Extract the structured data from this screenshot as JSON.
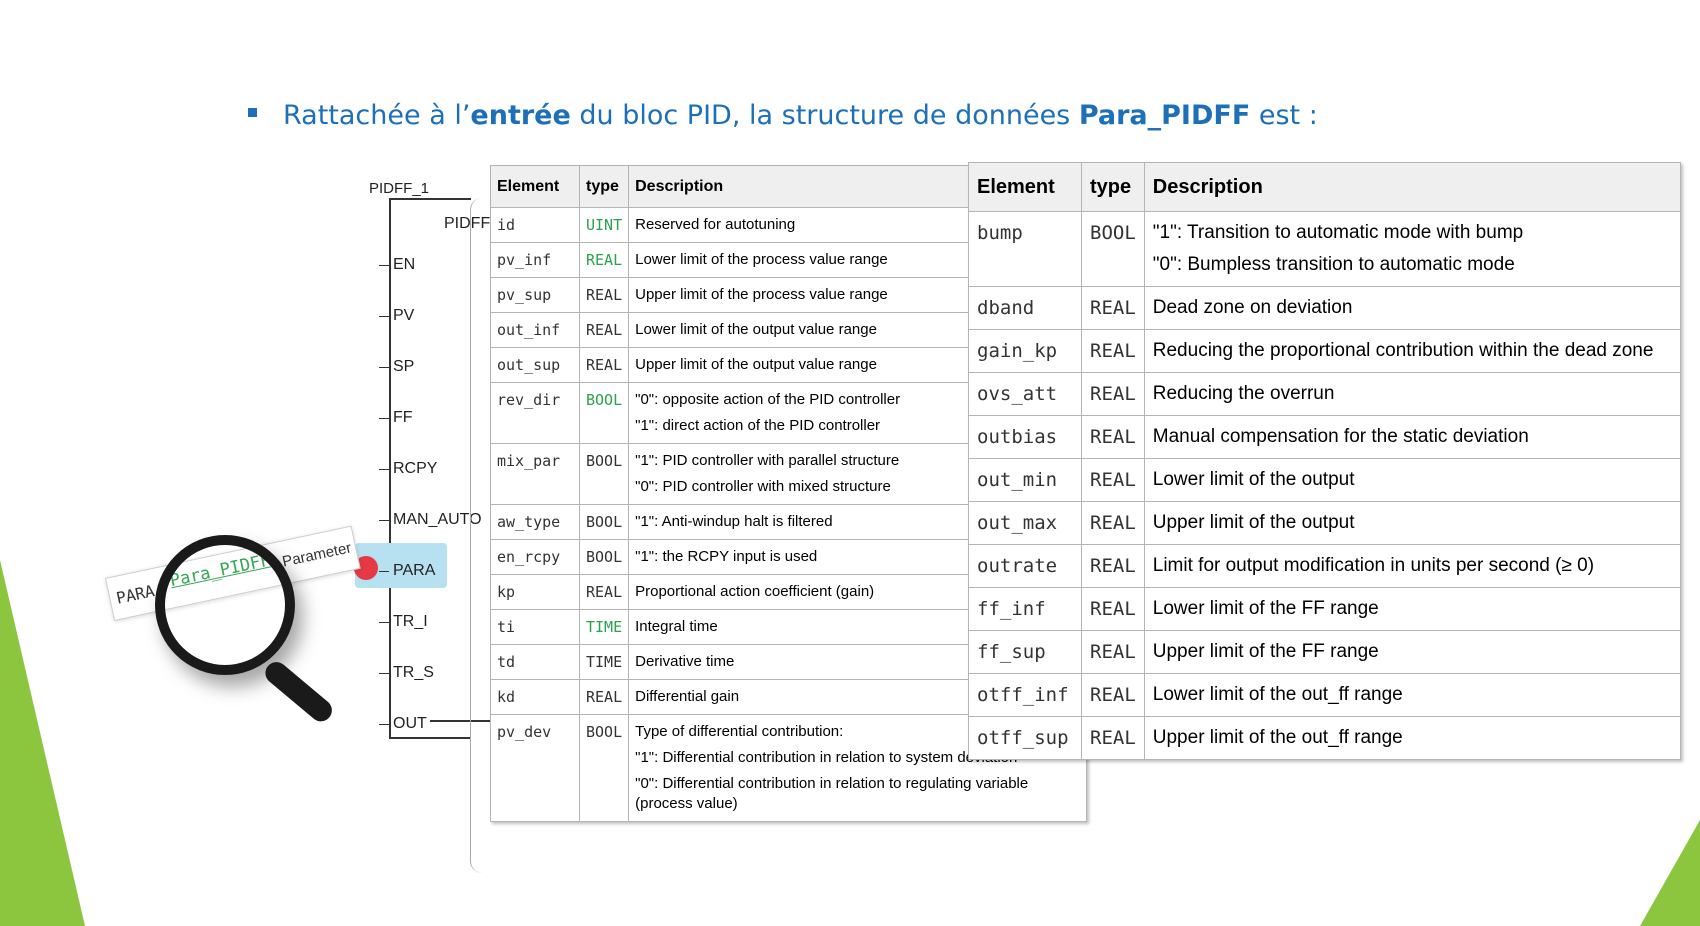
{
  "heading": {
    "prefix": "Rattachée à l’",
    "bold1": "entrée",
    "middle": " du bloc PID, la structure de données ",
    "bold2": "Para_PIDFF",
    "suffix": " est :"
  },
  "block": {
    "instance": "PIDFF_1",
    "type": "PIDFF",
    "pins": [
      "EN",
      "PV",
      "SP",
      "FF",
      "RCPY",
      "MAN_AUTO",
      "PARA",
      "TR_I",
      "TR_S",
      "OUT"
    ],
    "highlight_pin": "PARA"
  },
  "magnifier": {
    "label1": "PARA",
    "label2": "Para_PIDFF",
    "label3": "Parameter"
  },
  "table_left": {
    "headers": [
      "Element",
      "type",
      "Description"
    ],
    "rows": [
      {
        "el": "id",
        "type": "UINT",
        "type_color": "green",
        "desc": [
          "Reserved for autotuning"
        ]
      },
      {
        "el": "pv_inf",
        "type": "REAL",
        "type_color": "green",
        "desc": [
          "Lower limit of the process value range"
        ]
      },
      {
        "el": "pv_sup",
        "type": "REAL",
        "type_color": "",
        "desc": [
          "Upper limit of the process value range"
        ]
      },
      {
        "el": "out_inf",
        "type": "REAL",
        "type_color": "",
        "desc": [
          "Lower limit of the output value range"
        ]
      },
      {
        "el": "out_sup",
        "type": "REAL",
        "type_color": "",
        "desc": [
          "Upper limit of the output value range"
        ]
      },
      {
        "el": "rev_dir",
        "type": "BOOL",
        "type_color": "green",
        "desc": [
          "\"0\": opposite action of the PID controller",
          "\"1\": direct action of the PID controller"
        ]
      },
      {
        "el": "mix_par",
        "type": "BOOL",
        "type_color": "",
        "desc": [
          "\"1\": PID controller with parallel structure",
          "\"0\": PID controller with mixed structure"
        ]
      },
      {
        "el": "aw_type",
        "type": "BOOL",
        "type_color": "",
        "desc": [
          "\"1\": Anti-windup halt is filtered"
        ]
      },
      {
        "el": "en_rcpy",
        "type": "BOOL",
        "type_color": "",
        "desc": [
          "\"1\": the RCPY input is used"
        ]
      },
      {
        "el": "kp",
        "type": "REAL",
        "type_color": "",
        "desc": [
          "Proportional action coefficient (gain)"
        ]
      },
      {
        "el": "ti",
        "type": "TIME",
        "type_color": "green",
        "desc": [
          "Integral time"
        ]
      },
      {
        "el": "td",
        "type": "TIME",
        "type_color": "",
        "desc": [
          "Derivative time"
        ]
      },
      {
        "el": "kd",
        "type": "REAL",
        "type_color": "",
        "desc": [
          "Differential gain"
        ]
      },
      {
        "el": "pv_dev",
        "type": "BOOL",
        "type_color": "",
        "desc": [
          "Type of differential contribution:",
          "\"1\": Differential contribution in relation to system deviation",
          "\"0\": Differential contribution in relation to regulating variable (process value)"
        ]
      }
    ]
  },
  "table_right": {
    "headers": [
      "Element",
      "type",
      "Description"
    ],
    "rows": [
      {
        "el": "bump",
        "type": "BOOL",
        "desc": [
          "\"1\": Transition to automatic mode with bump",
          "\"0\": Bumpless transition to automatic mode"
        ]
      },
      {
        "el": "dband",
        "type": "REAL",
        "desc": [
          "Dead zone on deviation"
        ]
      },
      {
        "el": "gain_kp",
        "type": "REAL",
        "desc": [
          "Reducing the proportional contribution within the dead zone"
        ]
      },
      {
        "el": "ovs_att",
        "type": "REAL",
        "desc": [
          "Reducing the overrun"
        ]
      },
      {
        "el": "outbias",
        "type": "REAL",
        "desc": [
          "Manual compensation for the static deviation"
        ]
      },
      {
        "el": "out_min",
        "type": "REAL",
        "desc": [
          "Lower limit of the output"
        ]
      },
      {
        "el": "out_max",
        "type": "REAL",
        "desc": [
          "Upper limit of the output"
        ]
      },
      {
        "el": "outrate",
        "type": "REAL",
        "desc": [
          "Limit for output modification in units per second (≥ 0)"
        ]
      },
      {
        "el": "ff_inf",
        "type": "REAL",
        "desc": [
          "Lower limit of the FF range"
        ]
      },
      {
        "el": "ff_sup",
        "type": "REAL",
        "desc": [
          "Upper limit of the FF range"
        ]
      },
      {
        "el": "otff_inf",
        "type": "REAL",
        "desc": [
          "Lower limit of the out_ff range"
        ]
      },
      {
        "el": "otff_sup",
        "type": "REAL",
        "desc": [
          "Upper limit of the out_ff range"
        ]
      }
    ]
  },
  "colors": {
    "accent": "#1d6fb8",
    "green": "#8cc63f",
    "highlight": "#b7e1f1",
    "dot": "#e63946"
  }
}
